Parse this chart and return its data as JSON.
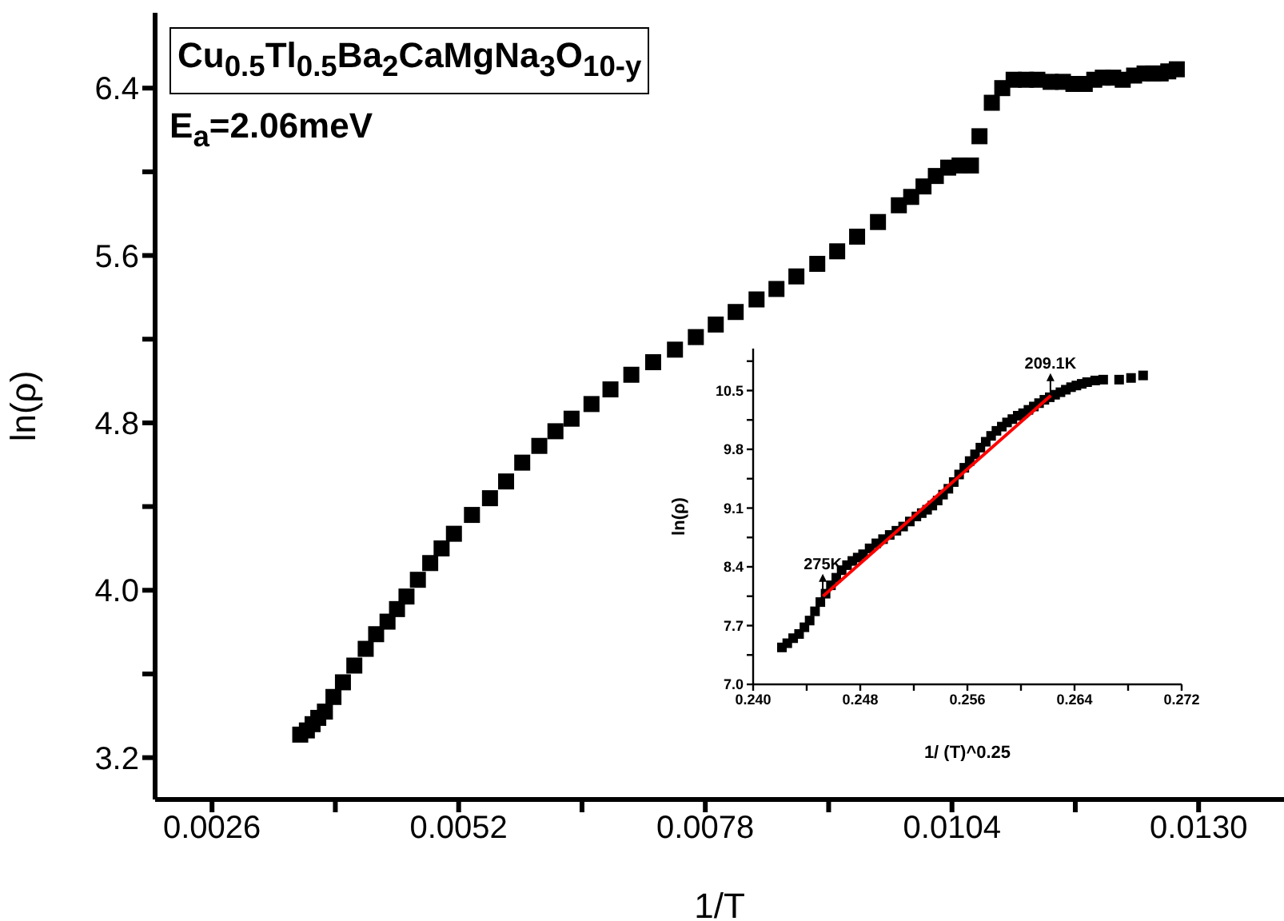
{
  "chart_data": [
    {
      "type": "scatter",
      "xlabel": "1/T",
      "ylabel": "ln(ρ)",
      "marker": "square",
      "xlim": [
        0.002,
        0.0139
      ],
      "ylim": [
        3.0,
        6.76
      ],
      "xticks": [
        {
          "value": 0.0026,
          "label": "0.0026"
        },
        {
          "value": 0.0039,
          "label": null
        },
        {
          "value": 0.0052,
          "label": "0.0052"
        },
        {
          "value": 0.0065,
          "label": null
        },
        {
          "value": 0.0078,
          "label": "0.0078"
        },
        {
          "value": 0.0091,
          "label": null
        },
        {
          "value": 0.0104,
          "label": "0.0104"
        },
        {
          "value": 0.0117,
          "label": null
        },
        {
          "value": 0.013,
          "label": "0.0130"
        }
      ],
      "yticks": [
        {
          "value": 3.2,
          "label": "3.2"
        },
        {
          "value": 3.6,
          "label": null
        },
        {
          "value": 4.0,
          "label": "4.0"
        },
        {
          "value": 4.4,
          "label": null
        },
        {
          "value": 4.8,
          "label": "4.8"
        },
        {
          "value": 5.2,
          "label": null
        },
        {
          "value": 5.6,
          "label": "5.6"
        },
        {
          "value": 6.0,
          "label": null
        },
        {
          "value": 6.4,
          "label": "6.4"
        }
      ],
      "annotations": [
        "Cu$_{0.5}$Tl$_{0.5}$Ba$_{2}$CaMgNa$_{3}$O$_{10-y}$",
        "E$_{a}$=2.06meV"
      ],
      "series": [
        {
          "color": "#000000",
          "x": [
            0.00353,
            0.0036,
            0.00366,
            0.00372,
            0.00379,
            0.00388,
            0.00398,
            0.0041,
            0.00422,
            0.00433,
            0.00445,
            0.00455,
            0.00465,
            0.00477,
            0.0049,
            0.00502,
            0.00515,
            0.00534,
            0.00553,
            0.0057,
            0.00587,
            0.00605,
            0.00622,
            0.00639,
            0.0066,
            0.0068,
            0.00702,
            0.00725,
            0.00748,
            0.0077,
            0.00791,
            0.00812,
            0.00834,
            0.00855,
            0.00876,
            0.00898,
            0.00919,
            0.0094,
            0.00962,
            0.00984,
            0.00997,
            0.0101,
            0.01023,
            0.01036,
            0.01048,
            0.0106,
            0.01069,
            0.01082,
            0.01093,
            0.01105,
            0.01118,
            0.0113,
            0.01144,
            0.01157,
            0.01168,
            0.0118,
            0.0119,
            0.01199,
            0.0121,
            0.0122,
            0.01232,
            0.01243,
            0.01252,
            0.0126,
            0.01268,
            0.01277
          ],
          "values": [
            3.31,
            3.33,
            3.36,
            3.39,
            3.42,
            3.49,
            3.56,
            3.64,
            3.72,
            3.79,
            3.85,
            3.91,
            3.97,
            4.05,
            4.13,
            4.2,
            4.27,
            4.36,
            4.44,
            4.52,
            4.61,
            4.69,
            4.76,
            4.82,
            4.89,
            4.96,
            5.03,
            5.09,
            5.15,
            5.21,
            5.27,
            5.33,
            5.39,
            5.44,
            5.5,
            5.56,
            5.62,
            5.69,
            5.76,
            5.84,
            5.88,
            5.93,
            5.98,
            6.02,
            6.03,
            6.03,
            6.17,
            6.33,
            6.4,
            6.44,
            6.44,
            6.44,
            6.43,
            6.43,
            6.42,
            6.42,
            6.44,
            6.45,
            6.45,
            6.44,
            6.46,
            6.47,
            6.47,
            6.47,
            6.48,
            6.49
          ]
        }
      ]
    },
    {
      "type": "scatter",
      "xlabel": "1/ (T)^0.25",
      "ylabel": "ln(ρ)",
      "marker": "square",
      "xlim": [
        0.24,
        0.272
      ],
      "ylim": [
        7.0,
        11.0
      ],
      "xticks": [
        {
          "value": 0.24,
          "label": "0.240"
        },
        {
          "value": 0.244,
          "label": null
        },
        {
          "value": 0.248,
          "label": "0.248"
        },
        {
          "value": 0.252,
          "label": null
        },
        {
          "value": 0.256,
          "label": "0.256"
        },
        {
          "value": 0.26,
          "label": null
        },
        {
          "value": 0.264,
          "label": "0.264"
        },
        {
          "value": 0.268,
          "label": null
        },
        {
          "value": 0.272,
          "label": "0.272"
        }
      ],
      "yticks": [
        {
          "value": 7.0,
          "label": "7.0"
        },
        {
          "value": 7.35,
          "label": null
        },
        {
          "value": 7.7,
          "label": "7.7"
        },
        {
          "value": 8.05,
          "label": null
        },
        {
          "value": 8.4,
          "label": "8.4"
        },
        {
          "value": 8.75,
          "label": null
        },
        {
          "value": 9.1,
          "label": "9.1"
        },
        {
          "value": 9.45,
          "label": null
        },
        {
          "value": 9.8,
          "label": "9.8"
        },
        {
          "value": 10.15,
          "label": null
        },
        {
          "value": 10.5,
          "label": "10.5"
        },
        {
          "value": 10.85,
          "label": null
        }
      ],
      "annotations": [
        {
          "text": "275K",
          "x": 0.2452,
          "y": 8.05
        },
        {
          "text": "209.1K",
          "x": 0.2622,
          "y": 10.44
        }
      ],
      "series": [
        {
          "color": "#000000",
          "x": [
            0.24215,
            0.24255,
            0.24299,
            0.24343,
            0.24383,
            0.24422,
            0.24462,
            0.24502,
            0.24541,
            0.24581,
            0.24621,
            0.24661,
            0.24701,
            0.24741,
            0.24781,
            0.24821,
            0.2487,
            0.2492,
            0.2497,
            0.2502,
            0.2507,
            0.2512,
            0.2517,
            0.25219,
            0.25259,
            0.25299,
            0.25338,
            0.25378,
            0.25418,
            0.25458,
            0.25498,
            0.25538,
            0.25577,
            0.25617,
            0.25657,
            0.25697,
            0.25737,
            0.25777,
            0.25817,
            0.25857,
            0.25896,
            0.25936,
            0.25976,
            0.26016,
            0.26056,
            0.26096,
            0.26135,
            0.26175,
            0.26215,
            0.26255,
            0.26295,
            0.26335,
            0.26374,
            0.26414,
            0.26454,
            0.26494,
            0.26554,
            0.26614,
            0.26733,
            0.26822,
            0.26912
          ],
          "values": [
            7.44,
            7.49,
            7.55,
            7.6,
            7.68,
            7.76,
            7.87,
            7.98,
            8.08,
            8.18,
            8.27,
            8.36,
            8.42,
            8.47,
            8.51,
            8.55,
            8.62,
            8.68,
            8.73,
            8.78,
            8.83,
            8.88,
            8.94,
            9.0,
            9.04,
            9.08,
            9.13,
            9.19,
            9.26,
            9.33,
            9.41,
            9.5,
            9.58,
            9.66,
            9.74,
            9.82,
            9.89,
            9.96,
            10.02,
            10.07,
            10.12,
            10.16,
            10.2,
            10.23,
            10.27,
            10.31,
            10.35,
            10.39,
            10.42,
            10.45,
            10.48,
            10.51,
            10.54,
            10.56,
            10.58,
            10.6,
            10.62,
            10.63,
            10.63,
            10.65,
            10.68
          ]
        },
        {
          "type": "line",
          "color": "#ff0000",
          "marker": "none",
          "x": [
            0.24522,
            0.26223
          ],
          "values": [
            8.05,
            10.44
          ]
        }
      ]
    }
  ]
}
